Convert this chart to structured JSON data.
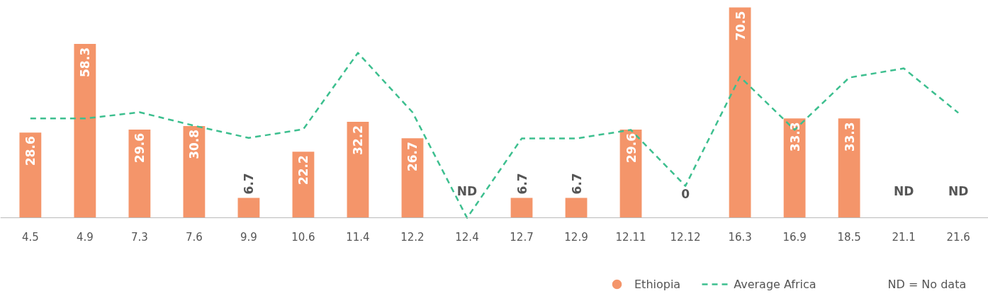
{
  "chart_data": {
    "type": "bar",
    "categories": [
      "4.5",
      "4.9",
      "7.3",
      "7.6",
      "9.9",
      "10.6",
      "11.4",
      "12.2",
      "12.4",
      "12.7",
      "12.9",
      "12.11",
      "12.12",
      "16.3",
      "16.9",
      "18.5",
      "21.1",
      "21.6"
    ],
    "series": [
      {
        "name": "Ethiopia",
        "color": "#f4956a",
        "values": [
          28.6,
          58.3,
          29.6,
          30.8,
          6.7,
          22.2,
          32.2,
          26.7,
          null,
          6.7,
          6.7,
          29.6,
          0,
          70.5,
          33.3,
          33.3,
          null,
          null
        ],
        "value_labels": [
          "28.6",
          "58.3",
          "29.6",
          "30.8",
          "6.7",
          "22.2",
          "32.2",
          "26.7",
          "ND",
          "6.7",
          "6.7",
          "29.6",
          "0",
          "70.5",
          "33.3",
          "33.3",
          "ND",
          "ND"
        ]
      },
      {
        "name": "Average Africa",
        "type": "line",
        "color": "#3dbf8f",
        "line_style": "dashed",
        "values": [
          33.3,
          33.3,
          35.4,
          30.9,
          26.8,
          29.7,
          55.3,
          35.4,
          0,
          26.6,
          26.6,
          29.5,
          10.7,
          47.3,
          29.5,
          47.0,
          50.1,
          35.2
        ]
      }
    ],
    "annotations": [
      "ND = No data"
    ],
    "legend": "bottom right",
    "grid": false
  }
}
